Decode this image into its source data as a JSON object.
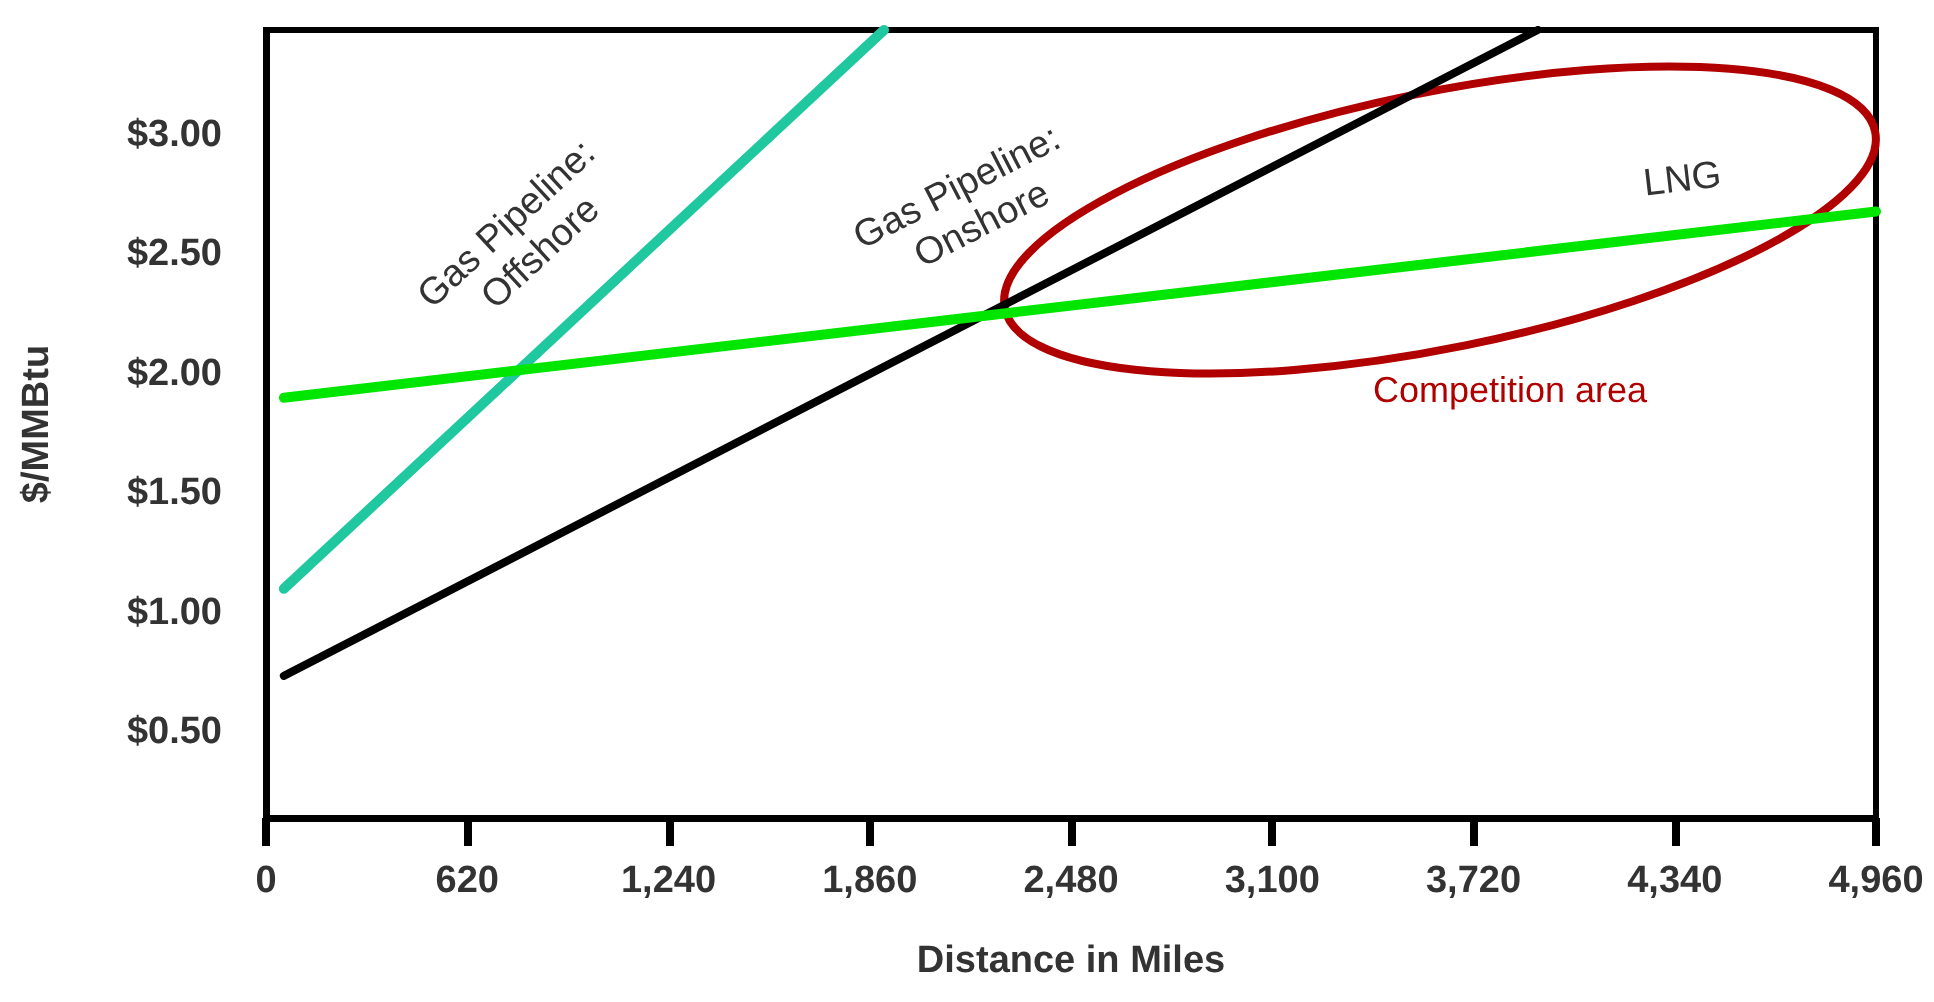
{
  "chart_data": {
    "type": "line",
    "xlabel": "Distance in Miles",
    "ylabel": "$/MMBtu",
    "xlim": [
      0,
      4960
    ],
    "ylim": [
      0.14,
      3.44
    ],
    "xticks": [
      0,
      {
        "value": 620,
        "label": "620"
      },
      {
        "value": 1240,
        "label": "1,240"
      },
      {
        "value": 1860,
        "label": "1,860"
      },
      {
        "value": 2480,
        "label": "2,480"
      },
      {
        "value": 3100,
        "label": "3,100"
      },
      {
        "value": 3720,
        "label": "3,720"
      },
      {
        "value": 4340,
        "label": "4,340"
      },
      {
        "value": 4960,
        "label": "4,960"
      }
    ],
    "yticks": [
      {
        "value": 0.5,
        "label": "$0.50"
      },
      {
        "value": 1,
        "label": "$1.00"
      },
      {
        "value": 1.5,
        "label": "$1.50"
      },
      {
        "value": 2,
        "label": "$2.00"
      },
      {
        "value": 2.5,
        "label": "$2.50"
      },
      {
        "value": 3,
        "label": "$3.00"
      }
    ],
    "series": [
      {
        "name": "Gas Pipeline: Offshore",
        "color": "#20c8a0",
        "x": [
          55,
          1904
        ],
        "values": [
          1.1,
          3.44
        ]
      },
      {
        "name": "Gas Pipeline: Onshore",
        "color": "#000000",
        "x": [
          55,
          3918
        ],
        "values": [
          0.735,
          3.44
        ]
      },
      {
        "name": "LNG",
        "color": "#00e600",
        "x": [
          55,
          4960
        ],
        "values": [
          1.9,
          2.68
        ]
      }
    ],
    "annotations": [
      "Competition area"
    ],
    "grid": false,
    "legend": false,
    "marker": "none",
    "line_style": "solid"
  }
}
